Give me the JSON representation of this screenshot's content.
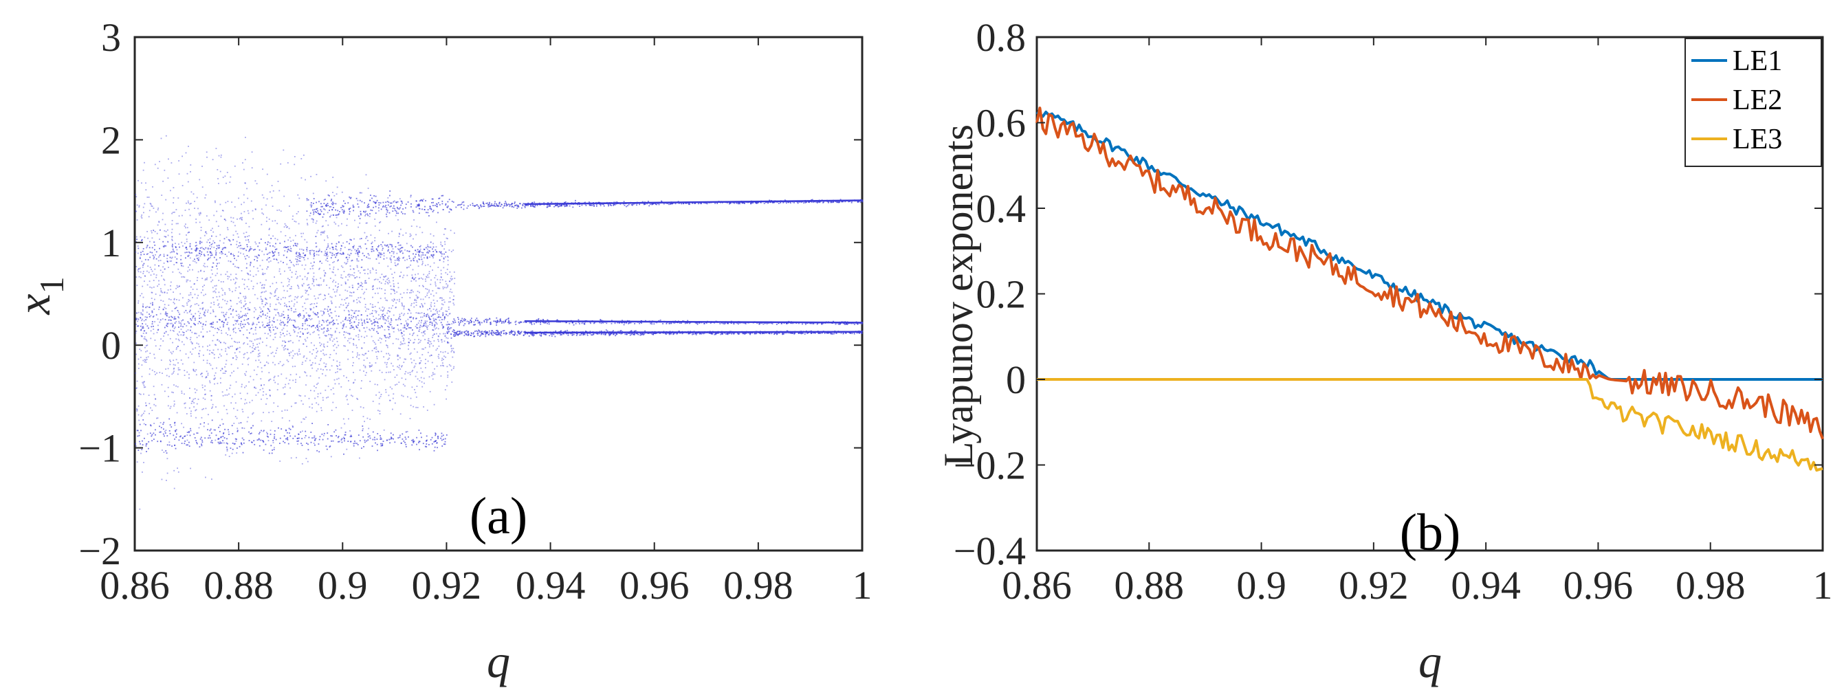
{
  "chart_data": [
    {
      "type": "scatter",
      "panel_label": "(a)",
      "title": "",
      "xlabel": "q",
      "ylabel": "x",
      "ylabel_subscript": "1",
      "xlim": [
        0.86,
        1.0
      ],
      "ylim": [
        -2,
        3
      ],
      "xticks": [
        0.86,
        0.88,
        0.9,
        0.92,
        0.94,
        0.96,
        0.98,
        1.0
      ],
      "xtick_labels": [
        "0.86",
        "0.88",
        "0.9",
        "0.92",
        "0.94",
        "0.96",
        "0.98",
        "1"
      ],
      "yticks": [
        -2,
        -1,
        0,
        1,
        2,
        3
      ],
      "ytick_labels": [
        "−2",
        "−1",
        "0",
        "1",
        "2",
        "3"
      ],
      "marker_color": "#3b3bd6",
      "description_series": [
        {
          "name": "upper branch",
          "x_start": 0.893,
          "x_end": 1.0,
          "y_start": 1.35,
          "y_end": 1.41
        },
        {
          "name": "middle branch",
          "x_start": 0.86,
          "x_end": 0.92,
          "y_start": 0.92,
          "y_end": 0.92
        },
        {
          "name": "lower branch A",
          "x_start": 0.86,
          "x_end": 1.0,
          "y_start": 0.25,
          "y_end": 0.22
        },
        {
          "name": "lower branch B",
          "x_start": 0.92,
          "x_end": 1.0,
          "y_start": 0.12,
          "y_end": 0.13
        },
        {
          "name": "bottom branch",
          "x_start": 0.86,
          "x_end": 0.92,
          "y_start": -0.88,
          "y_end": -0.92
        }
      ],
      "chaotic_region": [
        0.86,
        0.921
      ]
    },
    {
      "type": "line",
      "panel_label": "(b)",
      "title": "",
      "xlabel": "q",
      "ylabel": "Lyapunov exponents",
      "xlim": [
        0.86,
        1.0
      ],
      "ylim": [
        -0.4,
        0.8
      ],
      "xticks": [
        0.86,
        0.88,
        0.9,
        0.92,
        0.94,
        0.96,
        0.98,
        1.0
      ],
      "xtick_labels": [
        "0.86",
        "0.88",
        "0.9",
        "0.92",
        "0.94",
        "0.96",
        "0.98",
        "1"
      ],
      "yticks": [
        -0.4,
        -0.2,
        0,
        0.2,
        0.4,
        0.6,
        0.8
      ],
      "ytick_labels": [
        "−0.4",
        "−0.2",
        "0",
        "0.2",
        "0.4",
        "0.6",
        "0.8"
      ],
      "legend_position": "top-right",
      "series": [
        {
          "name": "LE1",
          "color": "#0072bd",
          "x": [
            0.86,
            0.87,
            0.88,
            0.89,
            0.9,
            0.91,
            0.92,
            0.93,
            0.94,
            0.95,
            0.958,
            0.962,
            0.97,
            0.98,
            0.99,
            1.0
          ],
          "values": [
            0.63,
            0.57,
            0.5,
            0.43,
            0.37,
            0.31,
            0.24,
            0.18,
            0.12,
            0.07,
            0.04,
            0.0,
            0.0,
            0.0,
            0.0,
            0.0
          ]
        },
        {
          "name": "LE2",
          "color": "#d95319",
          "x": [
            0.86,
            0.87,
            0.88,
            0.89,
            0.9,
            0.91,
            0.92,
            0.93,
            0.94,
            0.95,
            0.958,
            0.962,
            0.97,
            0.98,
            0.99,
            1.0
          ],
          "values": [
            0.61,
            0.55,
            0.47,
            0.41,
            0.34,
            0.28,
            0.22,
            0.16,
            0.1,
            0.05,
            0.02,
            0.0,
            -0.01,
            -0.03,
            -0.06,
            -0.12
          ]
        },
        {
          "name": "LE3",
          "color": "#edb120",
          "x": [
            0.86,
            0.88,
            0.9,
            0.92,
            0.94,
            0.958,
            0.96,
            0.962,
            0.97,
            0.98,
            0.99,
            1.0
          ],
          "values": [
            0.0,
            0.0,
            0.0,
            0.0,
            0.0,
            0.0,
            -0.05,
            -0.07,
            -0.1,
            -0.13,
            -0.17,
            -0.2
          ]
        }
      ]
    }
  ]
}
